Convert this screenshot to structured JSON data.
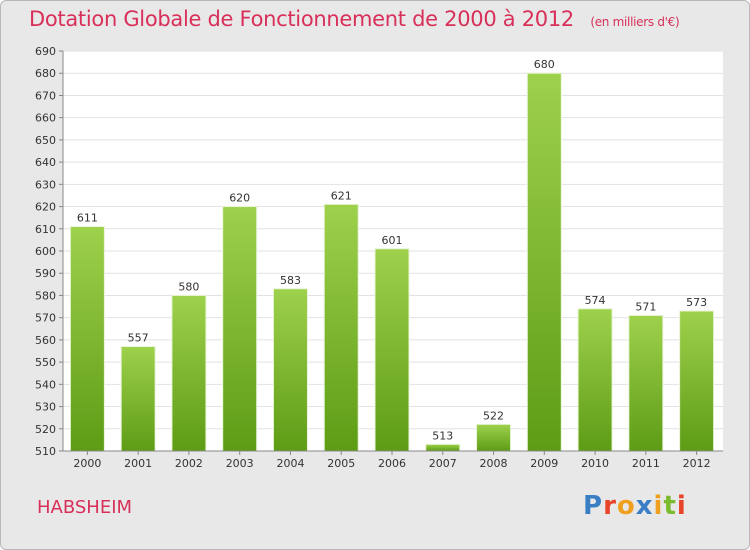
{
  "header": {
    "title": "Dotation Globale de Fonctionnement de 2000 à 2012",
    "subtitle": "(en milliers d'€)"
  },
  "footer": {
    "city": "HABSHEIM",
    "logo": "Proxiti"
  },
  "colors": {
    "title": "#d8305a",
    "bar_light": "#9ed14c",
    "bar_dark": "#5e9c16",
    "background": "#e8e8e8",
    "plot_background": "#ffffff",
    "logo_letters": [
      "#3a7fc4",
      "#e8442a",
      "#f0a020",
      "#3a7fc4",
      "#f0a020",
      "#7abb2e",
      "#e8442a"
    ]
  },
  "chart_data": {
    "type": "bar",
    "categories": [
      "2000",
      "2001",
      "2002",
      "2003",
      "2004",
      "2005",
      "2006",
      "2007",
      "2008",
      "2009",
      "2010",
      "2011",
      "2012"
    ],
    "values": [
      611,
      557,
      580,
      620,
      583,
      621,
      601,
      513,
      522,
      680,
      574,
      571,
      573
    ],
    "ylim": [
      510,
      690
    ],
    "ytick_step": 10,
    "grid": true,
    "data_labels": true
  }
}
